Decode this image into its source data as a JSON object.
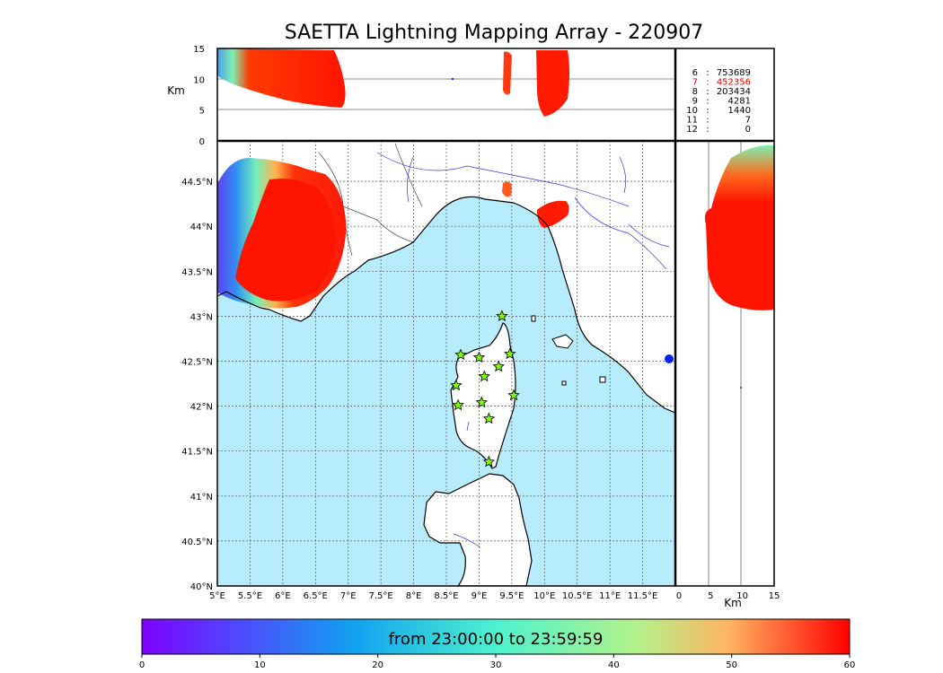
{
  "title": "SAETTA Lightning Mapping Array - 220907",
  "colors": {
    "sea": "#b6ecfb",
    "land": "#ffffff",
    "flash_red": "#ff1a00",
    "station_fill": "#7cfc00",
    "grid": "#555555",
    "river": "#3333dd",
    "coast": "#000000"
  },
  "altitude_panel": {
    "ylabel": "Km",
    "yticks": [
      "0",
      "5",
      "10",
      "15"
    ],
    "ylim": [
      0,
      15
    ]
  },
  "side_panel": {
    "xlabel": "Km",
    "xticks": [
      "0",
      "5",
      "10",
      "15"
    ],
    "xlim": [
      0,
      15
    ]
  },
  "map": {
    "lon_ticks": [
      "5°E",
      "5.5°E",
      "6°E",
      "6.5°E",
      "7°E",
      "7.5°E",
      "8°E",
      "8.5°E",
      "9°E",
      "9.5°E",
      "10°E",
      "10.5°E",
      "11°E",
      "11.5°E"
    ],
    "lat_ticks": [
      "44.5°N",
      "44°N",
      "43.5°N",
      "43°N",
      "42.5°N",
      "42°N",
      "41.5°N",
      "41°N",
      "40.5°N",
      "40°N"
    ],
    "lon_range": [
      5,
      12
    ],
    "lat_range": [
      40,
      44.95
    ],
    "stations": [
      {
        "lon": 9.35,
        "lat": 43.0
      },
      {
        "lon": 8.72,
        "lat": 42.57
      },
      {
        "lon": 9.0,
        "lat": 42.54
      },
      {
        "lon": 9.47,
        "lat": 42.58
      },
      {
        "lon": 9.3,
        "lat": 42.44
      },
      {
        "lon": 9.08,
        "lat": 42.33
      },
      {
        "lon": 8.65,
        "lat": 42.23
      },
      {
        "lon": 9.53,
        "lat": 42.12
      },
      {
        "lon": 9.04,
        "lat": 42.04
      },
      {
        "lon": 8.68,
        "lat": 42.01
      },
      {
        "lon": 9.15,
        "lat": 41.86
      },
      {
        "lon": 9.15,
        "lat": 41.38
      }
    ]
  },
  "stats": [
    {
      "label": "6",
      "value": "753689",
      "highlight": false
    },
    {
      "label": "7",
      "value": "452356",
      "highlight": true
    },
    {
      "label": "8",
      "value": "203434",
      "highlight": false
    },
    {
      "label": "9",
      "value": "4281",
      "highlight": false
    },
    {
      "label": "10",
      "value": "1440",
      "highlight": false
    },
    {
      "label": "11",
      "value": "7",
      "highlight": false
    },
    {
      "label": "12",
      "value": "0",
      "highlight": false
    }
  ],
  "colorbar": {
    "label": "from 23:00:00 to 23:59:59",
    "ticks": [
      "0",
      "10",
      "20",
      "30",
      "40",
      "50",
      "60"
    ],
    "range": [
      0,
      60
    ]
  }
}
